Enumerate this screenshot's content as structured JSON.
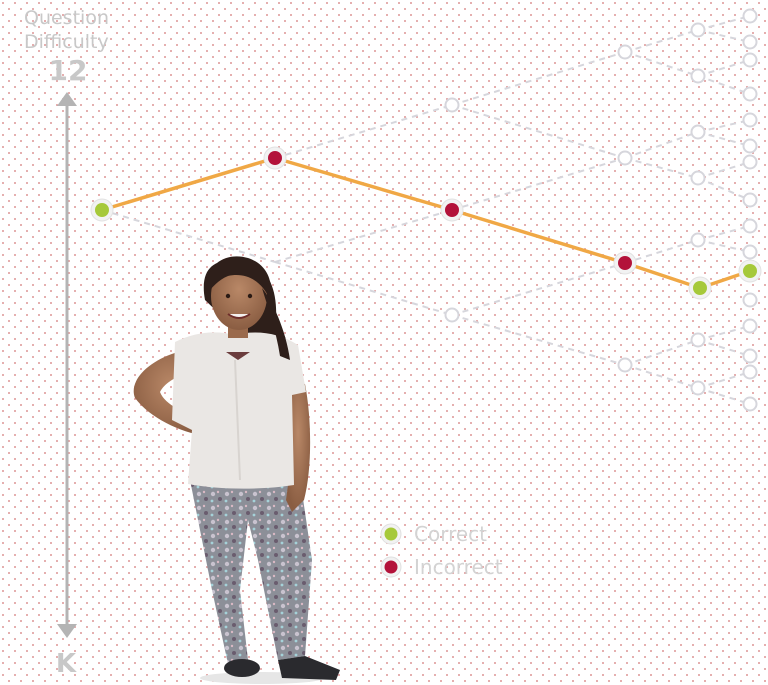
{
  "axis": {
    "title_line1": "Question",
    "title_line2": "Difficulty",
    "top_label": "12",
    "bottom_label": "K"
  },
  "legend": {
    "correct_label": "Correct",
    "incorrect_label": "Incorrect"
  },
  "colors": {
    "correct": "#a6c93a",
    "incorrect": "#b3123a",
    "path": "#f0a845",
    "branch": "#d6d6dc",
    "axis": "#b4b4b4",
    "dots": "#b23a3a"
  },
  "taken_path": [
    "correct",
    "incorrect",
    "incorrect",
    "incorrect",
    "correct",
    "correct"
  ],
  "figure": {
    "description_icon": "student-photo"
  }
}
